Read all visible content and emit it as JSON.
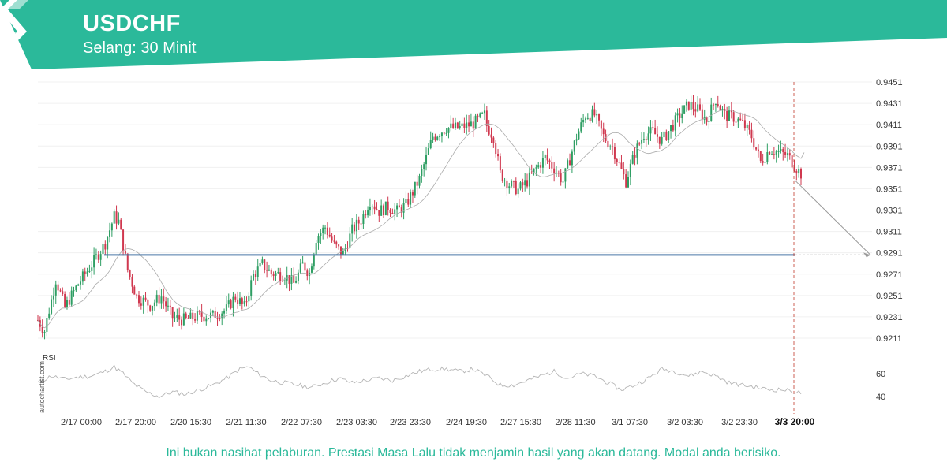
{
  "header": {
    "title": "USDCHF",
    "subtitle": "Selang: 30 Minit",
    "accent_color": "#2bb99a",
    "logo_icon": "autochartist-logo-icon"
  },
  "footer": {
    "disclaimer": "Ini bukan nasihat pelaburan. Prestasi Masa Lalu tidak menjamin hasil yang akan datang. Modal anda berisiko."
  },
  "watermark": "autochartist.com",
  "chart_data": {
    "type": "candlestick",
    "instrument": "USDCHF",
    "interval": "30 Minit",
    "x_ticks": [
      "2/17 00:00",
      "2/17 20:00",
      "2/20 15:30",
      "2/21 11:30",
      "2/22 07:30",
      "2/23 03:30",
      "2/23 23:30",
      "2/24 19:30",
      "2/27 15:30",
      "2/28 11:30",
      "3/1 07:30",
      "3/2 03:30",
      "3/2 23:30",
      "3/3 20:00"
    ],
    "highlighted_x_tick": "3/3 20:00",
    "y_ticks": [
      0.9451,
      0.9431,
      0.9411,
      0.9391,
      0.9371,
      0.9351,
      0.9331,
      0.9311,
      0.9291,
      0.9271,
      0.9251,
      0.9231,
      0.9211
    ],
    "ylim": [
      0.9198,
      0.9456
    ],
    "support_level": 0.9289,
    "forecast_target": 0.9289,
    "bull_color": "#2e9e63",
    "bear_color": "#d0384f",
    "level_color": "#4a78a6",
    "anchors": [
      [
        0,
        0.9228
      ],
      [
        3,
        0.9218
      ],
      [
        8,
        0.9266
      ],
      [
        12,
        0.924
      ],
      [
        18,
        0.9262
      ],
      [
        24,
        0.928
      ],
      [
        30,
        0.93
      ],
      [
        34,
        0.9325
      ],
      [
        36,
        0.932
      ],
      [
        40,
        0.9275
      ],
      [
        44,
        0.925
      ],
      [
        50,
        0.9242
      ],
      [
        55,
        0.925
      ],
      [
        60,
        0.923
      ],
      [
        66,
        0.9228
      ],
      [
        72,
        0.9232
      ],
      [
        78,
        0.9232
      ],
      [
        84,
        0.9238
      ],
      [
        88,
        0.925
      ],
      [
        92,
        0.924
      ],
      [
        96,
        0.927
      ],
      [
        100,
        0.928
      ],
      [
        104,
        0.9272
      ],
      [
        110,
        0.927
      ],
      [
        114,
        0.9262
      ],
      [
        118,
        0.928
      ],
      [
        121,
        0.9272
      ],
      [
        124,
        0.9305
      ],
      [
        128,
        0.9315
      ],
      [
        132,
        0.9298
      ],
      [
        136,
        0.929
      ],
      [
        140,
        0.9312
      ],
      [
        144,
        0.9322
      ],
      [
        148,
        0.934
      ],
      [
        152,
        0.933
      ],
      [
        156,
        0.9334
      ],
      [
        160,
        0.933
      ],
      [
        164,
        0.9336
      ],
      [
        170,
        0.936
      ],
      [
        176,
        0.94
      ],
      [
        182,
        0.9408
      ],
      [
        188,
        0.9408
      ],
      [
        194,
        0.9412
      ],
      [
        199,
        0.942
      ],
      [
        200,
        0.941
      ],
      [
        203,
        0.94
      ],
      [
        206,
        0.9365
      ],
      [
        210,
        0.9355
      ],
      [
        214,
        0.935
      ],
      [
        218,
        0.9358
      ],
      [
        222,
        0.937
      ],
      [
        226,
        0.938
      ],
      [
        230,
        0.937
      ],
      [
        234,
        0.9358
      ],
      [
        236,
        0.9372
      ],
      [
        240,
        0.94
      ],
      [
        244,
        0.942
      ],
      [
        248,
        0.942
      ],
      [
        252,
        0.94
      ],
      [
        256,
        0.939
      ],
      [
        260,
        0.9368
      ],
      [
        262,
        0.9358
      ],
      [
        266,
        0.9385
      ],
      [
        270,
        0.9402
      ],
      [
        274,
        0.9404
      ],
      [
        278,
        0.9396
      ],
      [
        282,
        0.9408
      ],
      [
        286,
        0.942
      ],
      [
        290,
        0.943
      ],
      [
        294,
        0.9425
      ],
      [
        298,
        0.9415
      ],
      [
        302,
        0.9435
      ],
      [
        306,
        0.942
      ],
      [
        310,
        0.9418
      ],
      [
        314,
        0.9412
      ],
      [
        318,
        0.94
      ],
      [
        322,
        0.9376
      ],
      [
        326,
        0.9388
      ],
      [
        330,
        0.9385
      ],
      [
        334,
        0.9382
      ],
      [
        338,
        0.937
      ],
      [
        340,
        0.9365
      ]
    ],
    "rsi": {
      "label": "RSI",
      "y_ticks": [
        60,
        40
      ],
      "ylim": [
        30,
        80
      ],
      "anchors": [
        [
          0,
          52
        ],
        [
          6,
          58
        ],
        [
          12,
          55
        ],
        [
          18,
          57
        ],
        [
          24,
          58
        ],
        [
          30,
          62
        ],
        [
          34,
          66
        ],
        [
          38,
          60
        ],
        [
          42,
          52
        ],
        [
          48,
          44
        ],
        [
          54,
          40
        ],
        [
          60,
          44
        ],
        [
          66,
          42
        ],
        [
          72,
          46
        ],
        [
          78,
          50
        ],
        [
          84,
          56
        ],
        [
          90,
          64
        ],
        [
          94,
          66
        ],
        [
          98,
          60
        ],
        [
          104,
          54
        ],
        [
          110,
          52
        ],
        [
          116,
          50
        ],
        [
          122,
          48
        ],
        [
          128,
          52
        ],
        [
          134,
          56
        ],
        [
          140,
          52
        ],
        [
          146,
          54
        ],
        [
          152,
          56
        ],
        [
          158,
          54
        ],
        [
          164,
          58
        ],
        [
          170,
          62
        ],
        [
          176,
          64
        ],
        [
          182,
          64
        ],
        [
          188,
          62
        ],
        [
          194,
          64
        ],
        [
          200,
          58
        ],
        [
          206,
          50
        ],
        [
          212,
          50
        ],
        [
          218,
          54
        ],
        [
          224,
          58
        ],
        [
          230,
          62
        ],
        [
          236,
          56
        ],
        [
          242,
          60
        ],
        [
          248,
          58
        ],
        [
          254,
          52
        ],
        [
          260,
          46
        ],
        [
          266,
          50
        ],
        [
          272,
          56
        ],
        [
          278,
          64
        ],
        [
          284,
          62
        ],
        [
          290,
          58
        ],
        [
          296,
          62
        ],
        [
          302,
          58
        ],
        [
          308,
          52
        ],
        [
          314,
          50
        ],
        [
          320,
          48
        ],
        [
          326,
          46
        ],
        [
          332,
          46
        ],
        [
          338,
          44
        ],
        [
          340,
          43
        ]
      ]
    }
  }
}
